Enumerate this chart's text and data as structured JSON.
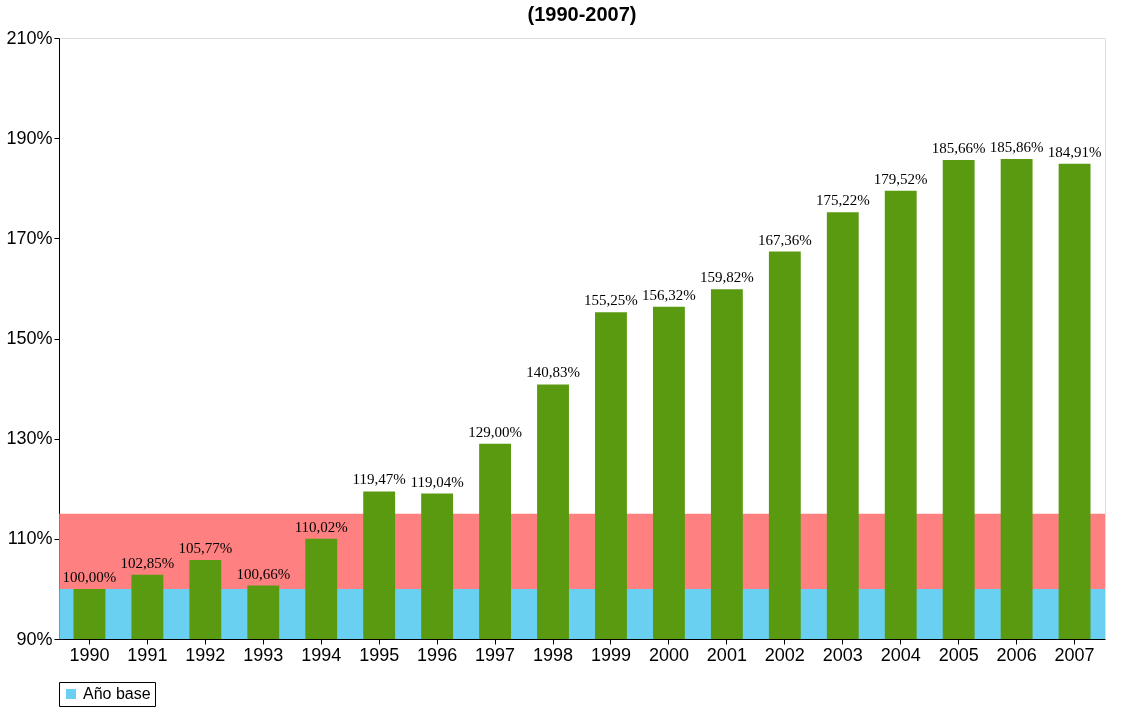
{
  "chart_data": {
    "type": "bar",
    "title": "(1990-2007)",
    "categories": [
      "1990",
      "1991",
      "1992",
      "1993",
      "1994",
      "1995",
      "1996",
      "1997",
      "1998",
      "1999",
      "2000",
      "2001",
      "2002",
      "2003",
      "2004",
      "2005",
      "2006",
      "2007"
    ],
    "values": [
      100.0,
      102.85,
      105.77,
      100.66,
      110.02,
      119.47,
      119.04,
      129.0,
      140.83,
      155.25,
      156.32,
      159.82,
      167.36,
      175.22,
      179.52,
      185.66,
      185.86,
      184.91
    ],
    "value_labels": [
      "100,00%",
      "102,85%",
      "105,77%",
      "100,66%",
      "110,02%",
      "119,47%",
      "119,04%",
      "129,00%",
      "140,83%",
      "155,25%",
      "156,32%",
      "159,82%",
      "167,36%",
      "175,22%",
      "179,52%",
      "185,66%",
      "185,86%",
      "184,91%"
    ],
    "color": "#5a9a10",
    "ylim": [
      90,
      210
    ],
    "yticks": [
      {
        "value": 90,
        "label": "90%"
      },
      {
        "value": 110,
        "label": "110%"
      },
      {
        "value": 130,
        "label": "130%"
      },
      {
        "value": 150,
        "label": "150%"
      },
      {
        "value": 170,
        "label": "170%"
      },
      {
        "value": 190,
        "label": "190%"
      },
      {
        "value": 210,
        "label": "210%"
      }
    ],
    "bands": [
      {
        "axis": "y",
        "from": 90,
        "to": 100,
        "label": "Año base",
        "color": "#4fc8f0"
      },
      {
        "axis": "y",
        "from": 100,
        "to": 115,
        "label": null,
        "color": "#ff6a6a"
      }
    ],
    "grid": false,
    "legend": "bottom"
  }
}
